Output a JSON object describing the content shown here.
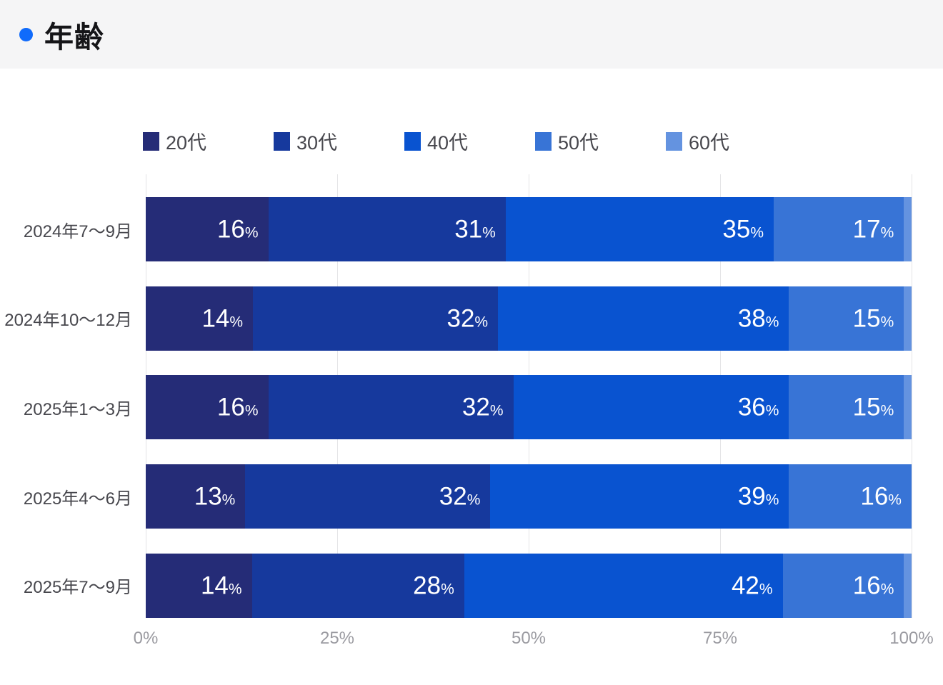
{
  "page": {
    "title": "年齢",
    "accent_color": "#106bfb",
    "header_bg": "#f5f5f6"
  },
  "chart_data": {
    "type": "bar",
    "stacked": true,
    "orientation": "horizontal",
    "title": "年齢",
    "categories": [
      "2024年7〜9月",
      "2024年10〜12月",
      "2025年1〜3月",
      "2025年4〜6月",
      "2025年7〜9月"
    ],
    "series": [
      {
        "name": "20代",
        "color": "#252c77",
        "values": [
          16,
          14,
          16,
          13,
          14
        ]
      },
      {
        "name": "30代",
        "color": "#16399d",
        "values": [
          31,
          32,
          32,
          32,
          28
        ]
      },
      {
        "name": "40代",
        "color": "#0953d0",
        "values": [
          35,
          38,
          36,
          39,
          42
        ]
      },
      {
        "name": "50代",
        "color": "#3874d6",
        "values": [
          17,
          15,
          15,
          16,
          16
        ]
      },
      {
        "name": "60代",
        "color": "#6493e0",
        "values": [
          1,
          1,
          1,
          0,
          1
        ]
      }
    ],
    "value_suffix": "%",
    "label_min_value": 4,
    "x_ticks": [
      "0%",
      "25%",
      "50%",
      "75%",
      "100%"
    ],
    "xlim": [
      0,
      100
    ],
    "legend_position": "top",
    "grid": true
  }
}
